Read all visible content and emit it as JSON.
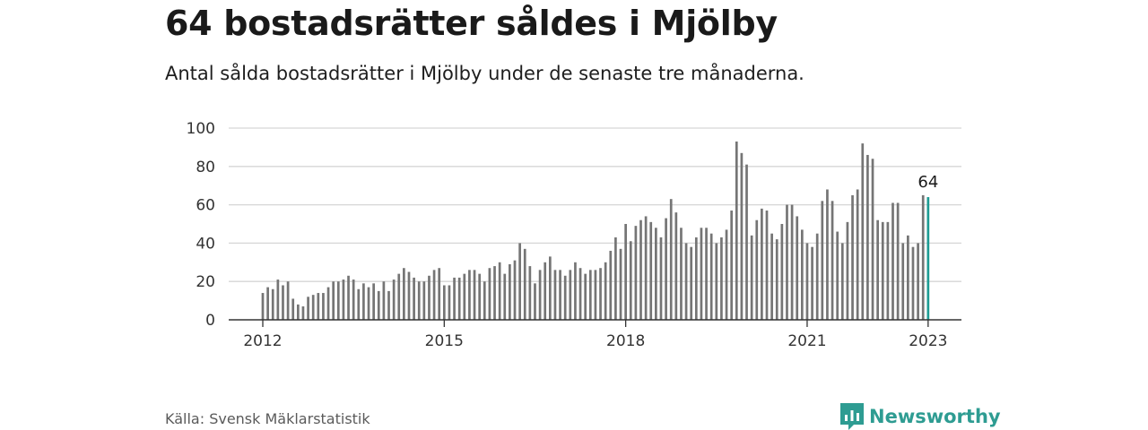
{
  "title": "64 bostadsrätter såldes i Mjölby",
  "subtitle": "Antal sålda bostadsrätter i Mjölby under de senaste tre månaderna.",
  "source": "Källa: Svensk Mäklarstatistik",
  "brand": {
    "name": "Newsworthy",
    "icon": "newsworthy-logo-icon",
    "color": "#2e9c92"
  },
  "chart_data": {
    "type": "bar",
    "title": "",
    "xlabel": "",
    "ylabel": "",
    "ylim": [
      0,
      100
    ],
    "yticks": [
      0,
      20,
      40,
      60,
      80,
      100
    ],
    "grid": true,
    "x_tick_labels": [
      "2012",
      "2015",
      "2018",
      "2021",
      "2023"
    ],
    "start": "2012-01",
    "frequency": "monthly",
    "bar_color": "#757575",
    "highlight_color": "#1f9c94",
    "highlight_label": "64",
    "values": [
      14,
      17,
      16,
      21,
      18,
      20,
      11,
      8,
      7,
      12,
      13,
      14,
      14,
      17,
      20,
      20,
      21,
      23,
      21,
      16,
      19,
      17,
      19,
      15,
      20,
      15,
      21,
      24,
      27,
      25,
      22,
      20,
      20,
      23,
      26,
      27,
      18,
      18,
      22,
      22,
      24,
      26,
      26,
      24,
      20,
      27,
      28,
      30,
      24,
      29,
      31,
      40,
      37,
      28,
      19,
      26,
      30,
      33,
      26,
      26,
      23,
      26,
      30,
      27,
      24,
      26,
      26,
      27,
      30,
      36,
      43,
      37,
      50,
      41,
      49,
      52,
      54,
      51,
      48,
      43,
      53,
      63,
      56,
      48,
      40,
      38,
      43,
      48,
      48,
      45,
      40,
      43,
      47,
      57,
      93,
      87,
      81,
      44,
      52,
      58,
      57,
      45,
      42,
      50,
      60,
      60,
      54,
      47,
      40,
      38,
      45,
      62,
      68,
      62,
      46,
      40,
      51,
      65,
      68,
      92,
      86,
      84,
      52,
      51,
      51,
      61,
      61,
      40,
      44,
      38,
      40,
      65,
      64
    ]
  }
}
